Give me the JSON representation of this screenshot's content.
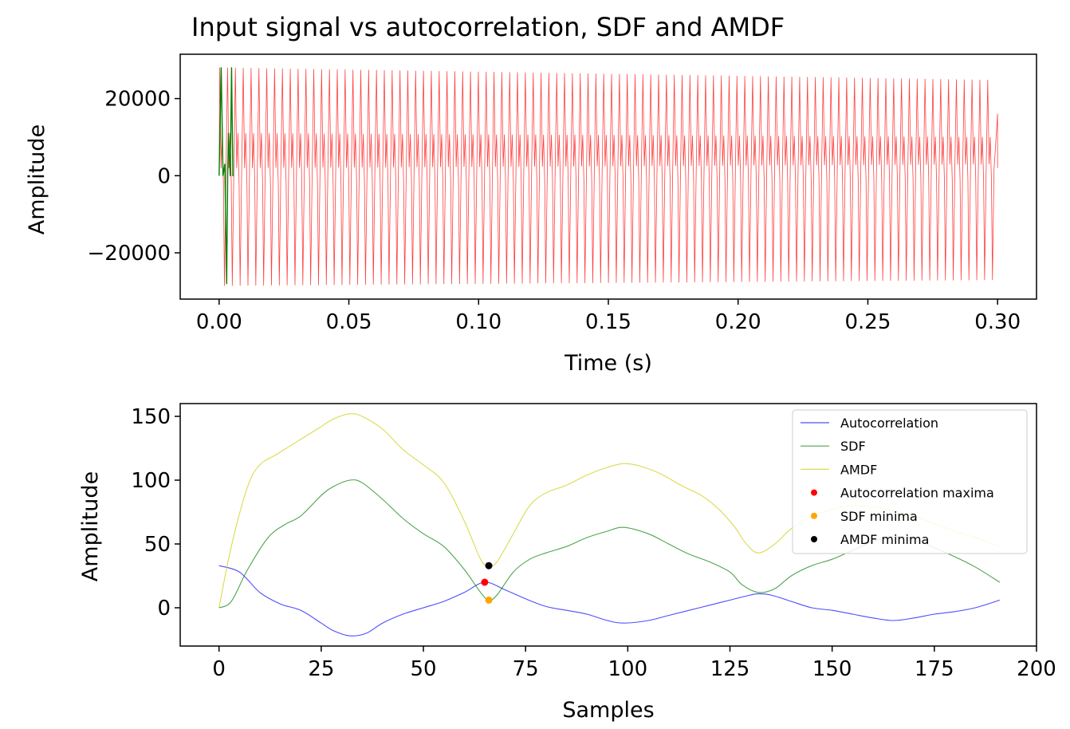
{
  "colors": {
    "input_signal": "#ff0000",
    "autocorrelation": "#0000ff",
    "sdf": "#008000",
    "amdf": "#cccc00",
    "autocorrelation_maxima": "#ff0000",
    "sdf_minima": "#ffa500",
    "amdf_minima": "#000000"
  },
  "chart_data": [
    {
      "type": "line",
      "title": "Input signal vs autocorrelation, SDF and AMDF",
      "xlabel": "Time (s)",
      "ylabel": "Amplitude",
      "xlim": [
        -0.015,
        0.315
      ],
      "ylim": [
        -32000,
        31500
      ],
      "xticks": [
        0.0,
        0.05,
        0.1,
        0.15,
        0.2,
        0.25,
        0.3
      ],
      "xtick_labels": [
        "0.00",
        "0.05",
        "0.10",
        "0.15",
        "0.20",
        "0.25",
        "0.30"
      ],
      "yticks": [
        -20000,
        0,
        20000
      ],
      "ytick_labels": [
        "−20000",
        "0",
        "20000"
      ],
      "grid": false,
      "series": [
        {
          "style": "waveform",
          "color_key": "input_signal",
          "x_start": 0.0,
          "x_end": 0.3,
          "period": 0.00302,
          "peak_high": [
            28000,
            24800
          ],
          "peak_mid": [
            11000,
            10000
          ],
          "dip_small": [
            -2000,
            -1000
          ],
          "trough": [
            -28500,
            -27000
          ]
        },
        {
          "style": "spike",
          "color_key": "sdf",
          "x": [
            0.0,
            0.0008,
            0.0015,
            0.0022,
            0.0029,
            0.0033,
            0.0036,
            0.0043,
            0.0048,
            0.0053,
            0.0056
          ],
          "y": [
            0,
            28000,
            0,
            3000,
            -28000,
            0,
            11000,
            0,
            28000,
            0,
            0
          ]
        }
      ]
    },
    {
      "type": "line",
      "xlabel": "Samples",
      "ylabel": "Amplitude",
      "xlim": [
        -9.5,
        200
      ],
      "ylim": [
        -30,
        160
      ],
      "xticks": [
        0,
        25,
        50,
        75,
        100,
        125,
        150,
        175,
        200
      ],
      "xtick_labels": [
        "0",
        "25",
        "50",
        "75",
        "100",
        "125",
        "150",
        "175",
        "200"
      ],
      "yticks": [
        0,
        50,
        100,
        150
      ],
      "ytick_labels": [
        "0",
        "50",
        "100",
        "150"
      ],
      "grid": false,
      "legend_position": "upper-right",
      "series": [
        {
          "name": "Autocorrelation",
          "color_key": "autocorrelation",
          "x": [
            0,
            5,
            10,
            15,
            20,
            25,
            28,
            32,
            36,
            40,
            45,
            50,
            55,
            60,
            65,
            70,
            75,
            80,
            85,
            90,
            95,
            99,
            105,
            110,
            115,
            120,
            125,
            130,
            132,
            135,
            140,
            145,
            150,
            155,
            160,
            165,
            170,
            175,
            180,
            185,
            191
          ],
          "y": [
            33,
            28,
            12,
            3,
            -2,
            -12,
            -18,
            -22,
            -20,
            -12,
            -5,
            0,
            5,
            12,
            20,
            14,
            7,
            1,
            -2,
            -5,
            -10,
            -12,
            -10,
            -6,
            -2,
            2,
            6,
            10,
            11,
            10,
            5,
            0,
            -2,
            -5,
            -8,
            -10,
            -8,
            -5,
            -3,
            0,
            6
          ]
        },
        {
          "name": "SDF",
          "color_key": "sdf",
          "x": [
            0,
            3,
            7,
            12,
            16,
            20,
            25,
            28,
            32,
            35,
            40,
            45,
            50,
            55,
            60,
            64,
            66,
            68,
            72,
            76,
            80,
            85,
            90,
            95,
            99,
            105,
            110,
            115,
            120,
            125,
            128,
            132,
            136,
            140,
            145,
            150,
            155,
            160,
            165,
            170,
            175,
            180,
            185,
            191
          ],
          "y": [
            0,
            5,
            30,
            55,
            65,
            72,
            88,
            95,
            100,
            98,
            85,
            70,
            58,
            48,
            30,
            12,
            6,
            10,
            28,
            38,
            43,
            48,
            55,
            60,
            63,
            58,
            50,
            42,
            36,
            28,
            18,
            12,
            15,
            25,
            33,
            38,
            45,
            52,
            56,
            54,
            47,
            40,
            32,
            20
          ]
        },
        {
          "name": "AMDF",
          "color_key": "amdf",
          "x": [
            0,
            3,
            7,
            10,
            14,
            18,
            22,
            25,
            28,
            32,
            35,
            40,
            45,
            50,
            55,
            60,
            64,
            66,
            68,
            72,
            76,
            80,
            85,
            90,
            95,
            99,
            103,
            108,
            113,
            118,
            122,
            126,
            129,
            132,
            136,
            140,
            145,
            150,
            155,
            160,
            165,
            170,
            175,
            180,
            185,
            191
          ],
          "y": [
            0,
            48,
            95,
            112,
            120,
            128,
            136,
            142,
            148,
            152,
            150,
            140,
            124,
            112,
            98,
            68,
            38,
            33,
            36,
            58,
            80,
            90,
            96,
            104,
            110,
            113,
            111,
            105,
            96,
            88,
            78,
            64,
            50,
            43,
            50,
            62,
            72,
            77,
            80,
            79,
            76,
            72,
            66,
            60,
            55,
            48
          ]
        },
        {
          "name": "Autocorrelation maxima",
          "style": "marker",
          "color_key": "autocorrelation_maxima",
          "x": [
            65
          ],
          "y": [
            20
          ]
        },
        {
          "name": "SDF minima",
          "style": "marker",
          "color_key": "sdf_minima",
          "x": [
            66
          ],
          "y": [
            6
          ]
        },
        {
          "name": "AMDF minima",
          "style": "marker",
          "color_key": "amdf_minima",
          "x": [
            66
          ],
          "y": [
            33
          ]
        }
      ]
    }
  ]
}
